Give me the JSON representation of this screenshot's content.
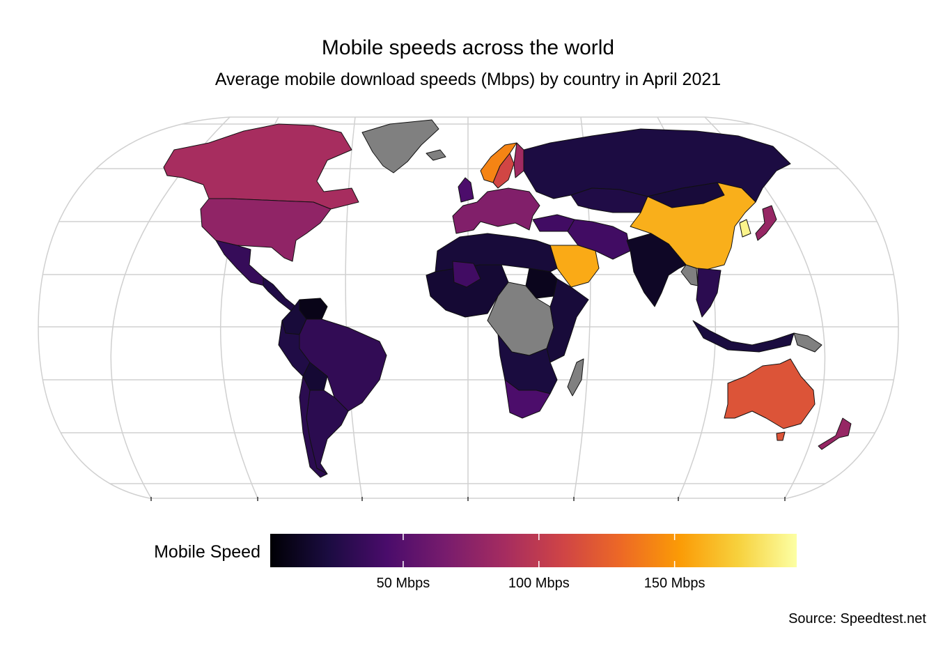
{
  "title": "Mobile speeds across the world",
  "subtitle": "Average mobile download speeds (Mbps) by country in April 2021",
  "caption": "Source: Speedtest.net",
  "legend": {
    "title": "Mobile Speed",
    "min": 1,
    "max": 195,
    "ticks": [
      {
        "value": 50,
        "label": "50 Mbps"
      },
      {
        "value": 100,
        "label": "100 Mbps"
      },
      {
        "value": 150,
        "label": "150 Mbps"
      }
    ],
    "palette": [
      "#000004",
      "#1b0c41",
      "#4a0c6b",
      "#781c6d",
      "#a52c60",
      "#cf4446",
      "#ed6925",
      "#fb9b06",
      "#f7d13d",
      "#fcffa4"
    ],
    "na_color": "#808080"
  },
  "map_data": {
    "type": "choropleth",
    "projection": "robinson",
    "regions": [
      {
        "name": "Canada",
        "value": 88
      },
      {
        "name": "United States",
        "value": 77
      },
      {
        "name": "Greenland",
        "value": null
      },
      {
        "name": "Mexico",
        "value": 35
      },
      {
        "name": "Central America",
        "value": 25
      },
      {
        "name": "Venezuela",
        "value": 8
      },
      {
        "name": "Colombia",
        "value": 20
      },
      {
        "name": "Brazil",
        "value": 33
      },
      {
        "name": "Peru",
        "value": 25
      },
      {
        "name": "Bolivia",
        "value": 18
      },
      {
        "name": "Argentina",
        "value": 30
      },
      {
        "name": "Chile",
        "value": 30
      },
      {
        "name": "Iceland",
        "value": null
      },
      {
        "name": "Norway",
        "value": 142
      },
      {
        "name": "Sweden",
        "value": 110
      },
      {
        "name": "Finland",
        "value": 85
      },
      {
        "name": "United Kingdom",
        "value": 45
      },
      {
        "name": "Western Europe",
        "value": 70
      },
      {
        "name": "Russia",
        "value": 23
      },
      {
        "name": "Kazakhstan",
        "value": 25
      },
      {
        "name": "Turkey",
        "value": 40
      },
      {
        "name": "Middle East",
        "value": 40
      },
      {
        "name": "Saudi Arabia",
        "value": 158
      },
      {
        "name": "China",
        "value": 160
      },
      {
        "name": "Mongolia",
        "value": 20
      },
      {
        "name": "South Korea",
        "value": 190
      },
      {
        "name": "Japan",
        "value": 80
      },
      {
        "name": "India",
        "value": 13
      },
      {
        "name": "Myanmar",
        "value": null
      },
      {
        "name": "Southeast Asia",
        "value": 30
      },
      {
        "name": "Indonesia",
        "value": 22
      },
      {
        "name": "Papua New Guinea",
        "value": null
      },
      {
        "name": "Australia",
        "value": 118
      },
      {
        "name": "New Zealand",
        "value": 80
      },
      {
        "name": "North Africa",
        "value": 20
      },
      {
        "name": "West Africa",
        "value": 18
      },
      {
        "name": "Mali",
        "value": 40
      },
      {
        "name": "Sudan",
        "value": 10
      },
      {
        "name": "Central Africa",
        "value": null
      },
      {
        "name": "East Africa",
        "value": 20
      },
      {
        "name": "Southern Africa",
        "value": 22
      },
      {
        "name": "South Africa",
        "value": 45
      },
      {
        "name": "Madagascar",
        "value": null
      }
    ]
  }
}
